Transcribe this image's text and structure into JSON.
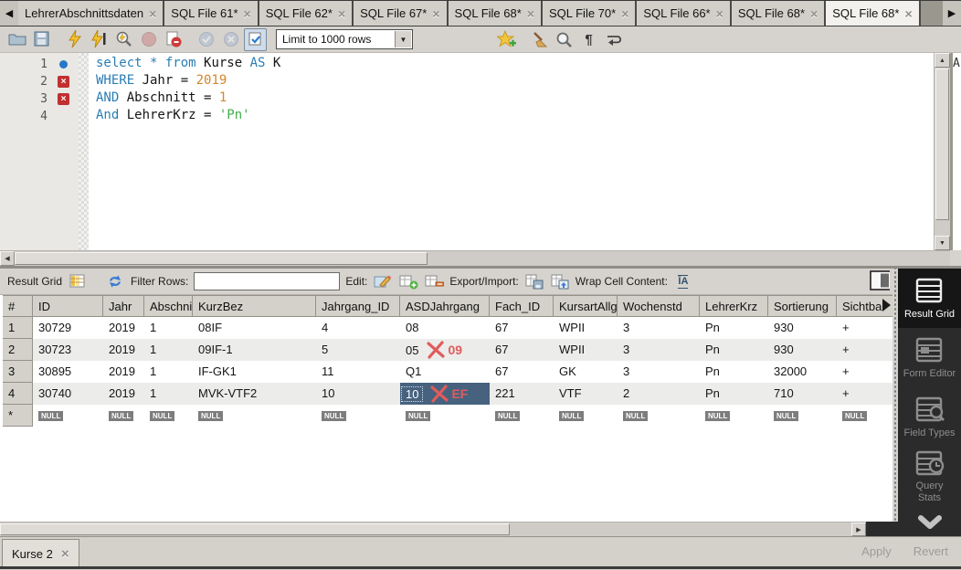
{
  "tab_bar": {
    "scroll_left_icon": "◀",
    "scroll_right_icon": "▶",
    "close_glyph": "×",
    "tabs": [
      {
        "label": "LehrerAbschnittsdaten",
        "active": false
      },
      {
        "label": "SQL File 61*",
        "active": false
      },
      {
        "label": "SQL File 62*",
        "active": false
      },
      {
        "label": "SQL File 67*",
        "active": false
      },
      {
        "label": "SQL File 68*",
        "active": false
      },
      {
        "label": "SQL File 70*",
        "active": false
      },
      {
        "label": "SQL File 66*",
        "active": false
      },
      {
        "label": "SQL File 68*",
        "active": false
      },
      {
        "label": "SQL File 68*",
        "active": true
      }
    ]
  },
  "toolbar": {
    "icons": [
      "open-folder",
      "save",
      "execute-lightning",
      "execute-current",
      "explain",
      "stop",
      "stop-on-error",
      "commit",
      "rollback",
      "limit-toggle",
      "save-snippet",
      "beautify",
      "find",
      "invisible-chars",
      "wrap-text"
    ],
    "limit_dropdown": {
      "value": "Limit to 1000 rows"
    }
  },
  "editor": {
    "lines": [
      {
        "num": "1",
        "marker": "statement",
        "tokens": [
          {
            "text": "select * from ",
            "type": "keyword"
          },
          {
            "text": "Kurse ",
            "type": "plain"
          },
          {
            "text": "AS ",
            "type": "keyword"
          },
          {
            "text": "K",
            "type": "plain"
          }
        ]
      },
      {
        "num": "2",
        "marker": "error",
        "tokens": [
          {
            "text": "WHERE ",
            "type": "keyword"
          },
          {
            "text": "Jahr = ",
            "type": "plain"
          },
          {
            "text": "2019",
            "type": "number"
          }
        ]
      },
      {
        "num": "3",
        "marker": "error",
        "tokens": [
          {
            "text": "AND ",
            "type": "keyword"
          },
          {
            "text": "Abschnitt = ",
            "type": "plain"
          },
          {
            "text": "1",
            "type": "number"
          }
        ]
      },
      {
        "num": "4",
        "marker": "none",
        "tokens": [
          {
            "text": "And ",
            "type": "keyword"
          },
          {
            "text": "LehrerKrz = ",
            "type": "plain"
          },
          {
            "text": "'Pn'",
            "type": "string"
          }
        ]
      }
    ],
    "side_panel_letter": "A"
  },
  "result_toolbar": {
    "result_grid_label": "Result Grid",
    "filter_label": "Filter Rows:",
    "filter_value": "",
    "edit_label": "Edit:",
    "export_label": "Export/Import:",
    "wrap_label": "Wrap Cell Content:",
    "wrap_glyph": "ĪA",
    "icons": [
      "result-grid",
      "refresh",
      "search",
      "pencil",
      "table-add",
      "table-delete",
      "export",
      "import",
      "wrap-cell",
      "panel-toggle"
    ]
  },
  "grid": {
    "columns": [
      "#",
      "ID",
      "Jahr",
      "Abschnitt",
      "KurzBez",
      "Jahrgang_ID",
      "ASDJahrgang",
      "Fach_ID",
      "KursartAllg",
      "Wochenstd",
      "LehrerKrz",
      "Sortierung",
      "Sichtbar"
    ],
    "rows": [
      [
        "1",
        "30729",
        "2019",
        "1",
        "08IF",
        "4",
        "08",
        "67",
        "WPII",
        "3",
        "Pn",
        "930",
        "+"
      ],
      [
        "2",
        "30723",
        "2019",
        "1",
        "09IF-1",
        "5",
        "05",
        "67",
        "WPII",
        "3",
        "Pn",
        "930",
        "+"
      ],
      [
        "3",
        "30895",
        "2019",
        "1",
        "IF-GK1",
        "11",
        "Q1",
        "67",
        "GK",
        "3",
        "Pn",
        "32000",
        "+"
      ],
      [
        "4",
        "30740",
        "2019",
        "1",
        "MVK-VTF2",
        "10",
        "10",
        "221",
        "VTF",
        "2",
        "Pn",
        "710",
        "+"
      ]
    ],
    "new_row_marker": "*",
    "null_placeholder": "NULL",
    "selected_cell": {
      "row": 4,
      "column": "ASDJahrgang",
      "value": "10"
    },
    "annotations": [
      {
        "row": 2,
        "column": "ASDJahrgang",
        "mark": "x-strike",
        "text": "09"
      },
      {
        "row": 4,
        "column": "ASDJahrgang",
        "mark": "x-strike",
        "text": "EF"
      }
    ]
  },
  "side_panel": {
    "items": [
      {
        "label": "Result Grid",
        "icon": "result-grid-panel",
        "active": true
      },
      {
        "label": "Form Editor",
        "icon": "form-editor-panel",
        "active": false
      },
      {
        "label": "Field Types",
        "icon": "field-types-panel",
        "active": false
      },
      {
        "label": "Query Stats",
        "icon": "query-stats-panel",
        "active": false
      }
    ],
    "more_icon": "chevron-down"
  },
  "footer": {
    "tab_label": "Kurse 2",
    "apply_label": "Apply",
    "revert_label": "Revert"
  },
  "colors": {
    "keyword": "#2a7db5",
    "number": "#d4862a",
    "string": "#3fae49",
    "selection_bg": "#46627e",
    "annotation_red": "#e05c5c",
    "error_marker": "#c03030",
    "statement_marker": "#2678c8",
    "sidebar_bg": "#2b2b2b",
    "sidebar_active_bg": "#161616"
  }
}
